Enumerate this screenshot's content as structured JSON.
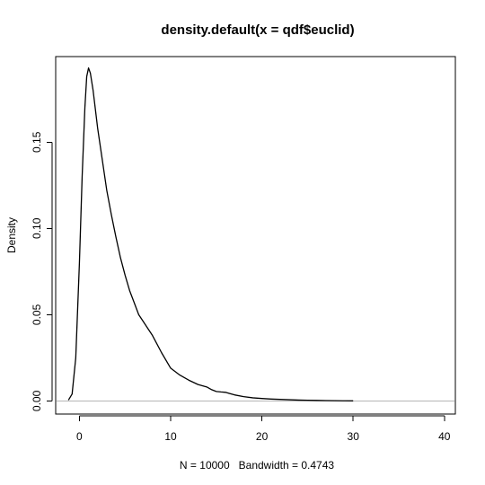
{
  "chart_data": {
    "type": "line",
    "title": "density.default(x = qdf$euclid)",
    "xlabel": "N = 10000   Bandwidth = 0.4743",
    "ylabel": "Density",
    "xlim": [
      -2.6,
      41.2
    ],
    "ylim": [
      -0.0076,
      0.1996
    ],
    "x_ticks": [
      0,
      10,
      20,
      30,
      40
    ],
    "x_tick_labels": [
      "0",
      "10",
      "20",
      "30",
      "40"
    ],
    "y_ticks": [
      0,
      0.05,
      0.1,
      0.15
    ],
    "y_tick_labels": [
      "0.00",
      "0.05",
      "0.10",
      "0.15"
    ],
    "grid": false,
    "zero_line": true,
    "colors": {
      "line": "#000000",
      "zero_line": "#b5b5b5",
      "background": "#ffffff"
    },
    "series": [
      {
        "x": [
          -1.2,
          -0.8,
          -0.4,
          0.0,
          0.3,
          0.6,
          0.8,
          1.0,
          1.2,
          1.5,
          2.0,
          2.5,
          3.0,
          3.5,
          4.0,
          4.5,
          5.0,
          5.5,
          6.0,
          6.5,
          7.0,
          7.5,
          8.0,
          9.0,
          10.0,
          11.0,
          12.0,
          13.0,
          14.0,
          14.5,
          15.0,
          15.5,
          16.0,
          17.0,
          18.0,
          19.0,
          20.0,
          21.0,
          22.0,
          23.0,
          24.0,
          25.0,
          26.0,
          27.0,
          28.0,
          29.0,
          30.0
        ],
        "y": [
          0.0005,
          0.004,
          0.025,
          0.08,
          0.13,
          0.17,
          0.188,
          0.193,
          0.19,
          0.18,
          0.158,
          0.14,
          0.122,
          0.108,
          0.095,
          0.083,
          0.073,
          0.064,
          0.057,
          0.05,
          0.046,
          0.042,
          0.038,
          0.028,
          0.019,
          0.015,
          0.012,
          0.0095,
          0.008,
          0.0065,
          0.0055,
          0.0052,
          0.005,
          0.0035,
          0.0025,
          0.0018,
          0.0014,
          0.0011,
          0.0009,
          0.0007,
          0.0005,
          0.0004,
          0.0003,
          0.0002,
          0.00015,
          8e-05,
          4e-05
        ]
      }
    ]
  }
}
